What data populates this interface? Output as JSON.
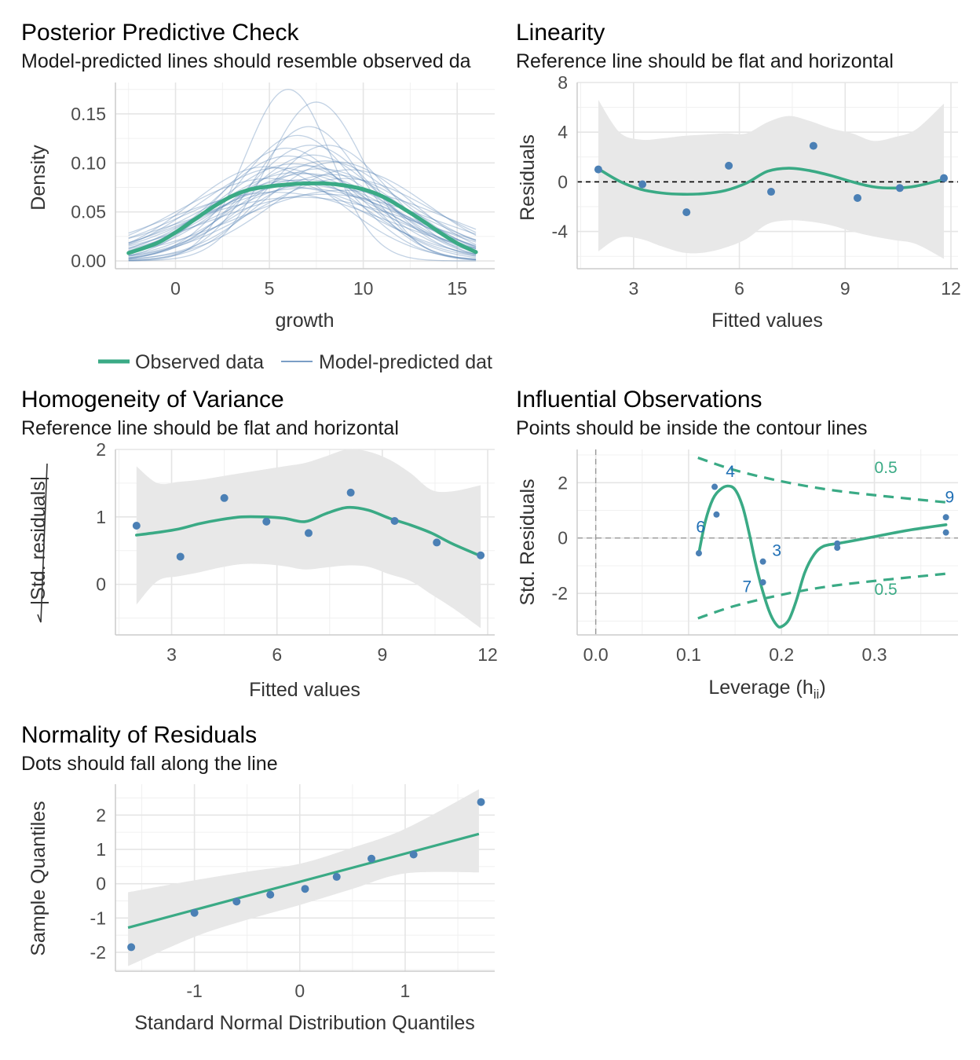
{
  "colors": {
    "observed": "#3aaa85",
    "predicted": "#4f7fb2",
    "point": "#4b80b5",
    "band": "#e8e8e8",
    "label": "#1f6fb5"
  },
  "chart_data": [
    {
      "id": "ppc",
      "type": "line",
      "title": "Posterior Predictive Check",
      "subtitle": "Model-predicted lines should resemble observed da",
      "xlabel": "growth",
      "ylabel": "Density",
      "xlim": [
        -3.2,
        17
      ],
      "ylim": [
        -0.008,
        0.182
      ],
      "xticks": [
        0,
        5,
        10,
        15
      ],
      "xtick_labels": [
        "0",
        "5",
        "10",
        "15"
      ],
      "yticks": [
        0,
        0.05,
        0.1,
        0.15
      ],
      "ytick_labels": [
        "0.00",
        "0.05",
        "0.10",
        "0.15"
      ],
      "legend": {
        "position": "bottom",
        "observed_label": "Observed data",
        "predicted_label": "Model-predicted dat"
      },
      "observed": {
        "x": [
          -2.5,
          -1,
          0,
          1,
          2,
          3,
          4,
          5,
          6,
          7,
          8,
          9,
          10,
          11,
          12,
          13,
          14,
          15,
          16
        ],
        "y": [
          0.008,
          0.018,
          0.029,
          0.042,
          0.055,
          0.066,
          0.073,
          0.076,
          0.078,
          0.079,
          0.079,
          0.077,
          0.073,
          0.066,
          0.055,
          0.043,
          0.03,
          0.018,
          0.009
        ]
      },
      "predicted_curves": [
        {
          "m": 6.0,
          "s": 2.3,
          "h": 0.175
        },
        {
          "m": 7.5,
          "s": 2.6,
          "h": 0.162
        },
        {
          "m": 6.5,
          "s": 3.2,
          "h": 0.128
        },
        {
          "m": 7.2,
          "s": 3.5,
          "h": 0.118
        },
        {
          "m": 6.0,
          "s": 3.8,
          "h": 0.107
        },
        {
          "m": 8.0,
          "s": 4.0,
          "h": 0.102
        },
        {
          "m": 5.5,
          "s": 4.3,
          "h": 0.095
        },
        {
          "m": 7.0,
          "s": 4.6,
          "h": 0.089
        },
        {
          "m": 8.3,
          "s": 4.5,
          "h": 0.088
        },
        {
          "m": 6.2,
          "s": 5.0,
          "h": 0.082
        },
        {
          "m": 7.6,
          "s": 5.2,
          "h": 0.079
        },
        {
          "m": 5.0,
          "s": 4.9,
          "h": 0.084
        },
        {
          "m": 9.0,
          "s": 4.8,
          "h": 0.084
        },
        {
          "m": 6.8,
          "s": 5.6,
          "h": 0.074
        },
        {
          "m": 7.0,
          "s": 4.2,
          "h": 0.097
        },
        {
          "m": 6.3,
          "s": 4.1,
          "h": 0.099
        },
        {
          "m": 8.6,
          "s": 3.9,
          "h": 0.101
        },
        {
          "m": 5.8,
          "s": 5.4,
          "h": 0.076
        },
        {
          "m": 7.9,
          "s": 6.0,
          "h": 0.068
        },
        {
          "m": 6.6,
          "s": 6.3,
          "h": 0.065
        },
        {
          "m": 4.8,
          "s": 4.0,
          "h": 0.096
        },
        {
          "m": 9.3,
          "s": 4.2,
          "h": 0.093
        },
        {
          "m": 7.3,
          "s": 3.7,
          "h": 0.108
        },
        {
          "m": 6.9,
          "s": 4.9,
          "h": 0.083
        },
        {
          "m": 5.3,
          "s": 5.8,
          "h": 0.07
        },
        {
          "m": 8.9,
          "s": 5.6,
          "h": 0.072
        },
        {
          "m": 7.1,
          "s": 2.9,
          "h": 0.137
        },
        {
          "m": 6.4,
          "s": 4.5,
          "h": 0.09
        },
        {
          "m": 7.7,
          "s": 4.3,
          "h": 0.094
        },
        {
          "m": 5.9,
          "s": 3.4,
          "h": 0.115
        },
        {
          "m": 8.1,
          "s": 3.3,
          "h": 0.118
        },
        {
          "m": 6.7,
          "s": 5.2,
          "h": 0.078
        }
      ]
    },
    {
      "id": "linearity",
      "type": "scatter",
      "title": "Linearity",
      "subtitle": "Reference line should be flat and horizontal",
      "xlabel": "Fitted values",
      "ylabel": "Residuals",
      "xlim": [
        1.4,
        12.2
      ],
      "ylim": [
        -7,
        8
      ],
      "xticks": [
        3,
        6,
        9,
        12
      ],
      "xtick_labels": [
        "3",
        "6",
        "9",
        "12"
      ],
      "yticks": [
        -4,
        0,
        4,
        8
      ],
      "ytick_labels": [
        "-4",
        "0",
        "4",
        "8"
      ],
      "reference_y": 0,
      "points": {
        "x": [
          2.0,
          3.25,
          4.5,
          5.7,
          6.9,
          8.1,
          9.35,
          10.55,
          11.8
        ],
        "y": [
          1.0,
          -0.2,
          -2.45,
          1.3,
          -0.8,
          2.9,
          -1.3,
          -0.5,
          0.3
        ]
      },
      "smooth": {
        "x": [
          2.0,
          2.6,
          3.2,
          3.8,
          4.4,
          5.0,
          5.6,
          6.2,
          6.8,
          7.4,
          8.0,
          8.6,
          9.2,
          9.8,
          10.4,
          11.0,
          11.8
        ],
        "y": [
          1.05,
          0.05,
          -0.6,
          -0.9,
          -1.0,
          -0.95,
          -0.7,
          -0.1,
          0.85,
          1.1,
          0.9,
          0.5,
          0.0,
          -0.4,
          -0.5,
          -0.35,
          0.2
        ],
        "upper": [
          6.6,
          4.0,
          3.4,
          3.5,
          3.7,
          3.8,
          3.9,
          3.9,
          4.8,
          5.3,
          4.9,
          4.3,
          3.9,
          3.3,
          3.6,
          4.2,
          6.3
        ],
        "lower": [
          -5.6,
          -4.5,
          -4.6,
          -5.2,
          -5.7,
          -5.7,
          -5.3,
          -4.6,
          -3.4,
          -3.1,
          -3.2,
          -3.5,
          -4.0,
          -4.4,
          -4.7,
          -5.0,
          -6.2
        ]
      }
    },
    {
      "id": "homogeneity",
      "type": "scatter",
      "title": "Homogeneity of Variance",
      "subtitle": "Reference line should be flat and horizontal",
      "xlabel": "Fitted values",
      "ylabel": "Std. residuals",
      "xlim": [
        1.4,
        12.2
      ],
      "ylim": [
        -0.75,
        2.0
      ],
      "xticks": [
        3,
        6,
        9,
        12
      ],
      "xtick_labels": [
        "3",
        "6",
        "9",
        "12"
      ],
      "yticks": [
        0,
        1,
        2
      ],
      "ytick_labels": [
        "0",
        "1",
        "2"
      ],
      "points": {
        "x": [
          2.0,
          3.25,
          4.5,
          5.7,
          6.9,
          8.1,
          9.35,
          10.55,
          11.8
        ],
        "y": [
          0.87,
          0.41,
          1.28,
          0.93,
          0.76,
          1.36,
          0.94,
          0.62,
          0.43
        ]
      },
      "smooth": {
        "x": [
          2.0,
          2.6,
          3.2,
          3.8,
          4.4,
          5.0,
          5.6,
          6.2,
          6.8,
          7.4,
          8.0,
          8.6,
          9.2,
          9.8,
          10.4,
          11.0,
          11.8
        ],
        "y": [
          0.73,
          0.77,
          0.82,
          0.9,
          0.96,
          1.0,
          1.0,
          0.98,
          0.93,
          1.05,
          1.14,
          1.1,
          0.98,
          0.88,
          0.76,
          0.6,
          0.42
        ],
        "upper": [
          1.75,
          1.5,
          1.52,
          1.55,
          1.6,
          1.65,
          1.7,
          1.75,
          1.8,
          1.9,
          2.0,
          1.97,
          1.85,
          1.65,
          1.4,
          1.38,
          1.47
        ],
        "lower": [
          -0.3,
          0.05,
          0.12,
          0.18,
          0.25,
          0.3,
          0.3,
          0.27,
          0.22,
          0.25,
          0.28,
          0.26,
          0.15,
          0.05,
          -0.15,
          -0.35,
          -0.65
        ]
      }
    },
    {
      "id": "influential",
      "type": "scatter",
      "title": "Influential Observations",
      "subtitle": "Points should be inside the contour lines",
      "xlabel": "Leverage (h",
      "xlabel_sub": "ii",
      "xlabel_end": ")",
      "ylabel": "Std. Residuals",
      "xlim": [
        -0.02,
        0.39
      ],
      "ylim": [
        -3.5,
        3.2
      ],
      "xticks": [
        0.0,
        0.1,
        0.2,
        0.3
      ],
      "xtick_labels": [
        "0.0",
        "0.1",
        "0.2",
        "0.3"
      ],
      "yticks": [
        -2,
        0,
        2
      ],
      "ytick_labels": [
        "-2",
        "0",
        "2"
      ],
      "points": {
        "x": [
          0.111,
          0.128,
          0.13,
          0.18,
          0.18,
          0.26,
          0.26,
          0.377,
          0.377
        ],
        "y": [
          -0.55,
          1.85,
          0.85,
          -0.85,
          -1.6,
          -0.2,
          -0.35,
          0.75,
          0.2
        ]
      },
      "point_labels": [
        {
          "text": "4",
          "x": 0.14,
          "y": 2.2
        },
        {
          "text": "6",
          "x": 0.108,
          "y": 0.2
        },
        {
          "text": "3",
          "x": 0.19,
          "y": -0.65
        },
        {
          "text": "7",
          "x": 0.158,
          "y": -1.95
        },
        {
          "text": "9",
          "x": 0.376,
          "y": 1.28
        }
      ],
      "contour_label": "0.5",
      "contour_label_positions": [
        {
          "x": 0.3,
          "y": 2.35
        },
        {
          "x": 0.3,
          "y": -2.05
        }
      ],
      "contour_upper": {
        "x": [
          0.11,
          0.15,
          0.2,
          0.25,
          0.3,
          0.35,
          0.38
        ],
        "y": [
          2.9,
          2.45,
          2.05,
          1.75,
          1.55,
          1.38,
          1.28
        ]
      },
      "contour_lower": {
        "x": [
          0.11,
          0.15,
          0.2,
          0.25,
          0.3,
          0.35,
          0.38
        ],
        "y": [
          -2.9,
          -2.45,
          -2.05,
          -1.75,
          -1.55,
          -1.38,
          -1.28
        ]
      },
      "smooth": {
        "x": [
          0.111,
          0.118,
          0.126,
          0.134,
          0.142,
          0.15,
          0.158,
          0.165,
          0.172,
          0.18,
          0.188,
          0.195,
          0.2,
          0.208,
          0.216,
          0.225,
          0.235,
          0.245,
          0.26,
          0.28,
          0.3,
          0.32,
          0.34,
          0.36,
          0.377
        ],
        "y": [
          -0.55,
          0.6,
          1.4,
          1.75,
          1.88,
          1.75,
          1.15,
          0.2,
          -0.9,
          -1.95,
          -2.75,
          -3.15,
          -3.2,
          -2.95,
          -2.25,
          -1.25,
          -0.6,
          -0.3,
          -0.2,
          -0.08,
          0.05,
          0.18,
          0.3,
          0.4,
          0.48
        ]
      }
    },
    {
      "id": "normality",
      "type": "scatter",
      "title": "Normality of Residuals",
      "subtitle": "Dots should fall along the line",
      "xlabel": "Standard Normal Distribution Quantiles",
      "ylabel": "Sample Quantiles",
      "xlim": [
        -1.75,
        1.85
      ],
      "ylim": [
        -2.55,
        2.9
      ],
      "xticks": [
        -1,
        0,
        1
      ],
      "xtick_labels": [
        "-1",
        "0",
        "1"
      ],
      "yticks": [
        -2,
        -1,
        0,
        1,
        2
      ],
      "ytick_labels": [
        "-2",
        "-1",
        "0",
        "1",
        "2"
      ],
      "points": {
        "x": [
          -1.6,
          -1.0,
          -0.6,
          -0.28,
          0.05,
          0.35,
          0.68,
          1.08,
          1.72
        ],
        "y": [
          -1.85,
          -0.85,
          -0.52,
          -0.32,
          -0.15,
          0.2,
          0.73,
          0.85,
          2.38
        ]
      },
      "fit_line": {
        "x": [
          -1.63,
          1.7
        ],
        "y": [
          -1.28,
          1.45
        ]
      },
      "band": {
        "x": [
          -1.63,
          -1.0,
          -0.5,
          0.0,
          0.5,
          1.0,
          1.7
        ],
        "upper": [
          -0.25,
          0.1,
          0.35,
          0.58,
          1.05,
          1.6,
          2.75
        ],
        "lower": [
          -2.4,
          -1.55,
          -1.05,
          -0.62,
          -0.15,
          0.3,
          0.33
        ]
      }
    }
  ]
}
